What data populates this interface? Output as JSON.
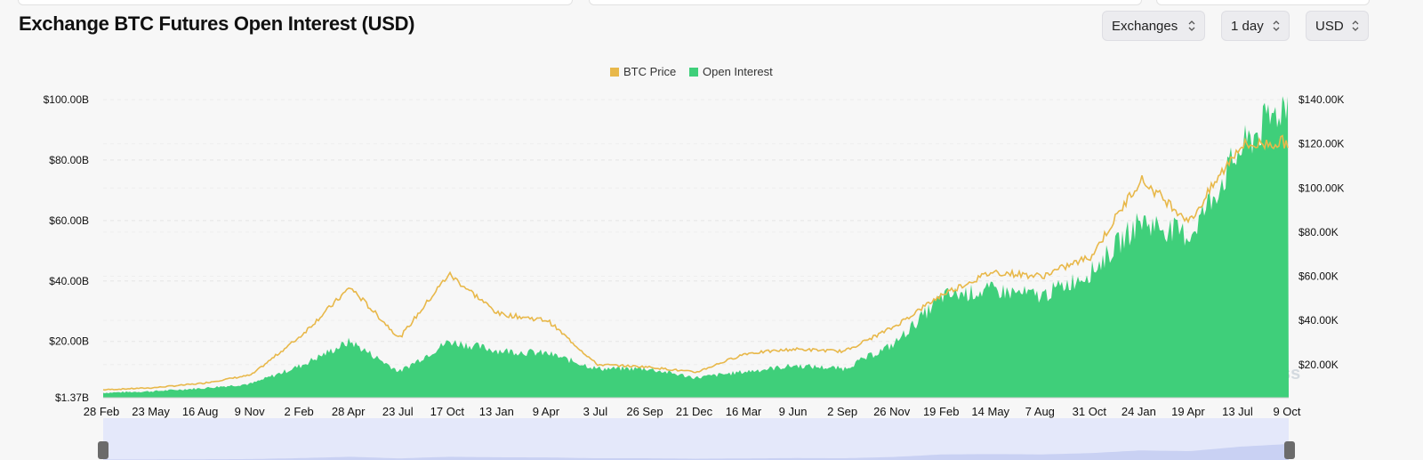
{
  "header": {
    "title": "Exchange BTC Futures Open Interest (USD)",
    "controls": [
      {
        "label": "Exchanges",
        "icon": "updown-chevron-icon"
      },
      {
        "label": "1 day",
        "icon": "updown-chevron-icon"
      },
      {
        "label": "USD",
        "icon": "updown-chevron-icon"
      }
    ]
  },
  "watermark": "coinglass",
  "chart_data": {
    "type": "area",
    "title": "Exchange BTC Futures Open Interest (USD)",
    "legend": {
      "position": "top-center",
      "items": [
        {
          "name": "BTC Price",
          "color": "#e8b84a"
        },
        {
          "name": "Open Interest",
          "color": "#3fcf7a"
        }
      ]
    },
    "x_tick_labels": [
      "28 Feb",
      "23 May",
      "16 Aug",
      "9 Nov",
      "2 Feb",
      "28 Apr",
      "23 Jul",
      "17 Oct",
      "13 Jan",
      "9 Apr",
      "3 Jul",
      "26 Sep",
      "21 Dec",
      "16 Mar",
      "9 Jun",
      "2 Sep",
      "26 Nov",
      "19 Feb",
      "14 May",
      "7 Aug",
      "31 Oct",
      "24 Jan",
      "19 Apr",
      "13 Jul",
      "9 Oct"
    ],
    "y_left": {
      "ticks": [
        "$1.37B",
        "$20.00B",
        "$40.00B",
        "$60.00B",
        "$80.00B",
        "$100.00B"
      ],
      "range": [
        1.37,
        100
      ]
    },
    "y_right": {
      "ticks": [
        "$20.00K",
        "$40.00K",
        "$60.00K",
        "$80.00K",
        "$100.00K",
        "$120.00K",
        "$140.00K"
      ],
      "range": [
        5,
        140
      ]
    },
    "grid": true,
    "series": [
      {
        "name": "Open Interest",
        "unit": "USD billions",
        "axis": "left",
        "x": [
          "28 Feb",
          "23 May",
          "16 Aug",
          "9 Nov",
          "2 Feb",
          "28 Apr",
          "23 Jul",
          "17 Oct",
          "13 Jan",
          "9 Apr",
          "3 Jul",
          "26 Sep",
          "21 Dec",
          "16 Mar",
          "9 Jun",
          "2 Sep",
          "26 Nov",
          "19 Feb",
          "14 May",
          "7 Aug",
          "31 Oct",
          "24 Jan",
          "19 Apr",
          "13 Jul",
          "9 Oct"
        ],
        "values": [
          3,
          3.5,
          4.5,
          6,
          12,
          20,
          10,
          20,
          17,
          16,
          11,
          11,
          8,
          10,
          12,
          11,
          19,
          35,
          37,
          35,
          43,
          60,
          55,
          83,
          100
        ]
      },
      {
        "name": "BTC Price",
        "unit": "USD thousands",
        "axis": "right",
        "x": [
          "28 Feb",
          "23 May",
          "16 Aug",
          "9 Nov",
          "2 Feb",
          "28 Apr",
          "23 Jul",
          "17 Oct",
          "13 Jan",
          "9 Apr",
          "3 Jul",
          "26 Sep",
          "21 Dec",
          "16 Mar",
          "9 Jun",
          "2 Sep",
          "26 Nov",
          "19 Feb",
          "14 May",
          "7 Aug",
          "31 Oct",
          "24 Jan",
          "19 Apr",
          "13 Jul",
          "9 Oct"
        ],
        "values": [
          8.6,
          9.5,
          11.5,
          15.3,
          33,
          55,
          32,
          61,
          43,
          40,
          20,
          19,
          16.5,
          25,
          27,
          26,
          37,
          52,
          62,
          60,
          69,
          104,
          85,
          119,
          121
        ]
      }
    ]
  }
}
